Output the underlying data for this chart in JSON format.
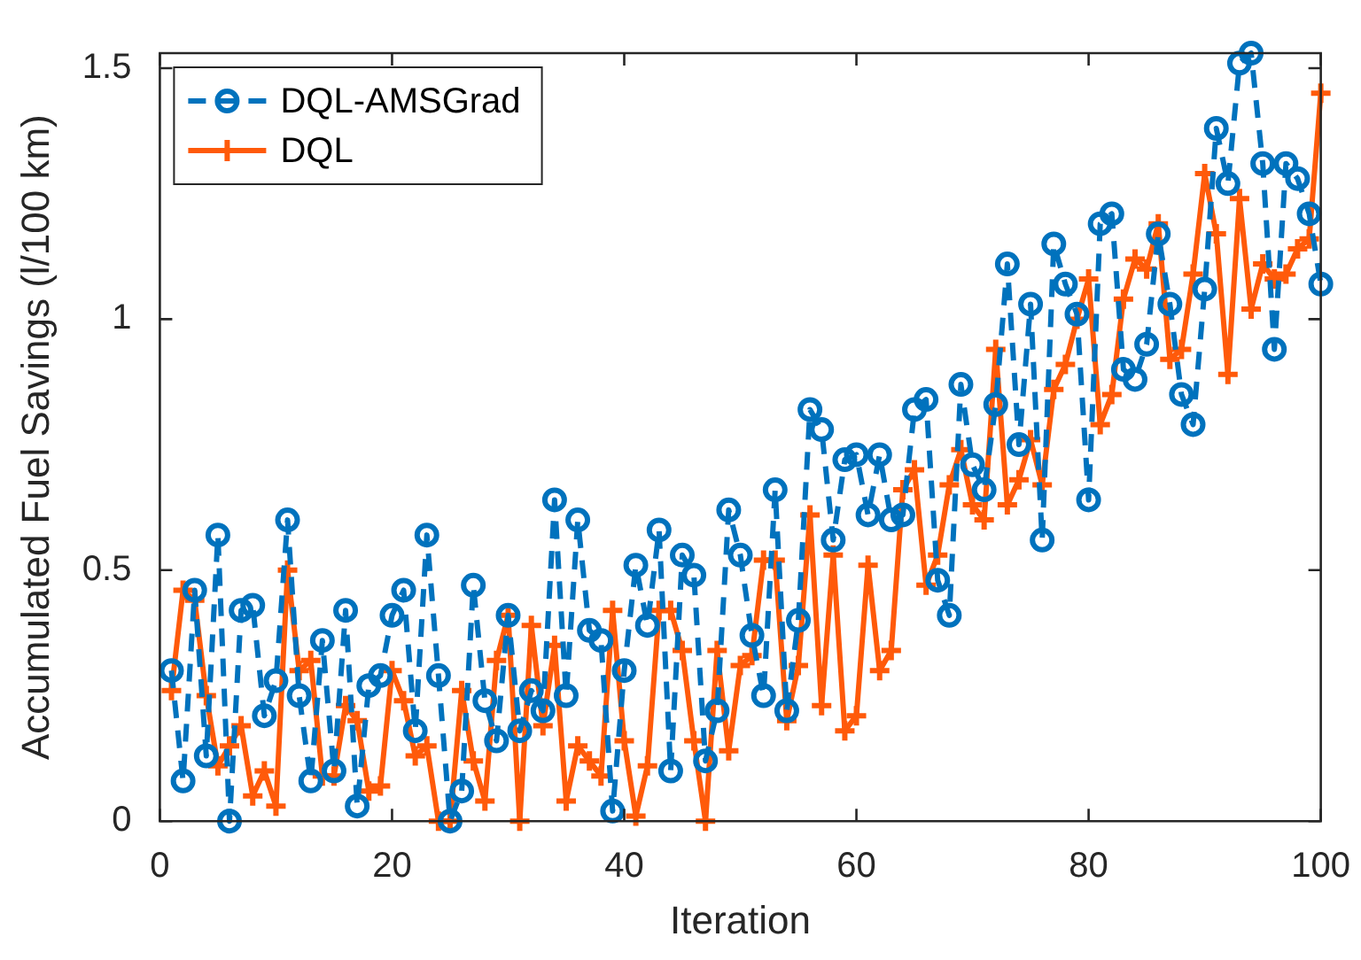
{
  "chart_data": {
    "type": "line",
    "xlabel": "Iteration",
    "ylabel": "Accumulated Fuel Savings (l/100 km)",
    "x": [
      1,
      2,
      3,
      4,
      5,
      6,
      7,
      8,
      9,
      10,
      11,
      12,
      13,
      14,
      15,
      16,
      17,
      18,
      19,
      20,
      21,
      22,
      23,
      24,
      25,
      26,
      27,
      28,
      29,
      30,
      31,
      32,
      33,
      34,
      35,
      36,
      37,
      38,
      39,
      40,
      41,
      42,
      43,
      44,
      45,
      46,
      47,
      48,
      49,
      50,
      51,
      52,
      53,
      54,
      55,
      56,
      57,
      58,
      59,
      60,
      61,
      62,
      63,
      64,
      65,
      66,
      67,
      68,
      69,
      70,
      71,
      72,
      73,
      74,
      75,
      76,
      77,
      78,
      79,
      80,
      81,
      82,
      83,
      84,
      85,
      86,
      87,
      88,
      89,
      90,
      91,
      92,
      93,
      94,
      95,
      96,
      97,
      98,
      99,
      100
    ],
    "series": [
      {
        "name": "DQL-AMSGrad",
        "color": "#0072bd",
        "marker": "circle",
        "line_style": "dashed",
        "values": [
          0.3,
          0.08,
          0.46,
          0.13,
          0.57,
          0.0,
          0.42,
          0.43,
          0.21,
          0.28,
          0.6,
          0.25,
          0.08,
          0.36,
          0.1,
          0.42,
          0.03,
          0.27,
          0.29,
          0.41,
          0.46,
          0.18,
          0.57,
          0.29,
          0.0,
          0.06,
          0.47,
          0.24,
          0.16,
          0.41,
          0.18,
          0.26,
          0.22,
          0.64,
          0.25,
          0.6,
          0.38,
          0.36,
          0.02,
          0.3,
          0.51,
          0.39,
          0.58,
          0.1,
          0.53,
          0.49,
          0.12,
          0.22,
          0.62,
          0.53,
          0.37,
          0.25,
          0.66,
          0.22,
          0.4,
          0.82,
          0.78,
          0.56,
          0.72,
          0.73,
          0.61,
          0.73,
          0.6,
          0.61,
          0.82,
          0.84,
          0.48,
          0.41,
          0.87,
          0.71,
          0.66,
          0.83,
          1.11,
          0.75,
          1.03,
          0.56,
          1.15,
          1.07,
          1.01,
          0.64,
          1.19,
          1.21,
          0.9,
          0.88,
          0.95,
          1.17,
          1.03,
          0.85,
          0.79,
          1.06,
          1.38,
          1.27,
          1.51,
          1.53,
          1.31,
          0.94,
          1.31,
          1.28,
          1.21,
          1.07
        ]
      },
      {
        "name": "DQL",
        "color": "#ff5a0a",
        "marker": "cross",
        "line_style": "solid",
        "values": [
          0.26,
          0.46,
          0.44,
          0.25,
          0.11,
          0.15,
          0.19,
          0.05,
          0.1,
          0.03,
          0.5,
          0.3,
          0.32,
          0.09,
          0.09,
          0.23,
          0.2,
          0.06,
          0.07,
          0.3,
          0.24,
          0.13,
          0.15,
          0.0,
          0.0,
          0.26,
          0.12,
          0.04,
          0.32,
          0.41,
          0.0,
          0.39,
          0.19,
          0.35,
          0.04,
          0.15,
          0.12,
          0.09,
          0.42,
          0.16,
          0.01,
          0.11,
          0.42,
          0.42,
          0.34,
          0.16,
          0.0,
          0.34,
          0.14,
          0.31,
          0.33,
          0.52,
          0.52,
          0.2,
          0.31,
          0.61,
          0.23,
          0.53,
          0.18,
          0.21,
          0.51,
          0.3,
          0.34,
          0.66,
          0.7,
          0.47,
          0.53,
          0.67,
          0.74,
          0.63,
          0.6,
          0.94,
          0.63,
          0.68,
          0.76,
          0.67,
          0.86,
          0.91,
          1.0,
          1.08,
          0.79,
          0.85,
          1.04,
          1.12,
          1.1,
          1.19,
          0.92,
          0.94,
          1.09,
          1.29,
          1.17,
          0.89,
          1.24,
          1.02,
          1.11,
          1.08,
          1.09,
          1.14,
          1.16,
          1.45
        ]
      }
    ],
    "xlim": [
      0,
      100
    ],
    "xticks": [
      0,
      20,
      40,
      60,
      80,
      100
    ],
    "ylim": [
      0,
      1.53
    ],
    "yticks": [
      0,
      0.5,
      1,
      1.5
    ],
    "grid": false,
    "legend": "top left"
  }
}
